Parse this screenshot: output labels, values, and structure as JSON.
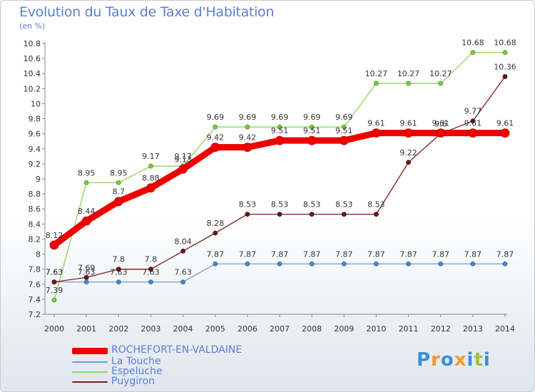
{
  "header": {
    "title": "Evolution du Taux de Taxe d'Habitation",
    "unit": "(en %)"
  },
  "logo": {
    "letters": [
      "P",
      "r",
      "o",
      "x",
      "i",
      "t",
      "i"
    ],
    "colors": [
      "#3d8fd6",
      "#f29a2e",
      "#3d8fd6",
      "#f29a2e",
      "#3d8fd6",
      "#9bc43c",
      "#3d8fd6"
    ]
  },
  "chart_data": {
    "type": "line",
    "x": [
      "2000",
      "2001",
      "2002",
      "2003",
      "2004",
      "2005",
      "2006",
      "2007",
      "2008",
      "2009",
      "2010",
      "2011",
      "2012",
      "2013",
      "2014"
    ],
    "ylim": [
      7.2,
      10.8
    ],
    "yticks": [
      7.2,
      7.4,
      7.6,
      7.8,
      8,
      8.2,
      8.4,
      8.6,
      8.8,
      9,
      9.2,
      9.4,
      9.6,
      9.8,
      10,
      10.2,
      10.4,
      10.6,
      10.8
    ],
    "grid": false,
    "legend_position": "bottom-left",
    "series": [
      {
        "name": "ROCHEFORT-EN-VALDAINE",
        "color": "#ee0000",
        "values": [
          8.12,
          8.44,
          8.7,
          8.88,
          9.13,
          9.42,
          9.42,
          9.51,
          9.51,
          9.51,
          9.61,
          9.61,
          9.61,
          9.61,
          9.61
        ]
      },
      {
        "name": "La Touche",
        "color": "#6a9fd8",
        "values": [
          7.63,
          7.63,
          7.63,
          7.63,
          7.63,
          7.87,
          7.87,
          7.87,
          7.87,
          7.87,
          7.87,
          7.87,
          7.87,
          7.87,
          7.87
        ]
      },
      {
        "name": "Espeluche",
        "color": "#8fd45a",
        "values": [
          7.39,
          8.95,
          8.95,
          9.17,
          9.17,
          9.69,
          9.69,
          9.69,
          9.69,
          9.69,
          10.27,
          10.27,
          10.27,
          10.68,
          10.68
        ]
      },
      {
        "name": "Puygiron",
        "color": "#7a1f1f",
        "values": [
          7.63,
          7.69,
          7.8,
          7.8,
          8.04,
          8.28,
          8.53,
          8.53,
          8.53,
          8.53,
          8.53,
          9.22,
          9.6,
          9.77,
          10.36
        ]
      }
    ]
  }
}
